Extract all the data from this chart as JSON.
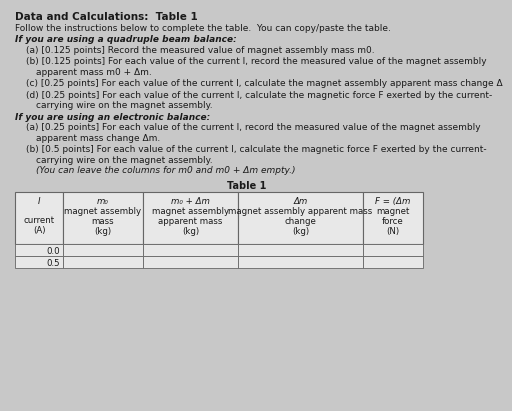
{
  "title": "Data and Calculations:  Table 1",
  "intro_text": "Follow the instructions below to complete the table.  You can copy/paste the table.",
  "sections": [
    {
      "heading": "If you are using a quadruple beam balance:",
      "items": [
        [
          [
            "(a) [0.125 points] Record the measured value of magnet assembly mass m",
            "0",
            "."
          ]
        ],
        [
          [
            "(b) [0.125 points] For each value of the current I, record the measured value of the magnet assembly"
          ],
          [
            "apparent mass m",
            "0",
            " + Δm."
          ]
        ],
        [
          [
            "(c) [0.25 points] For each value of the current I, calculate the magnet assembly apparent mass change Δ"
          ]
        ],
        [
          [
            "(d) [0.25 points] For each value of the current I, calculate the magnetic force F exerted by the current-"
          ],
          [
            "carrying wire on the magnet assembly."
          ]
        ]
      ]
    },
    {
      "heading": "If you are using an electronic balance:",
      "items": [
        [
          [
            "(a) [0.25 points] For each value of the current I, record the measured value of the magnet assembly"
          ],
          [
            "apparent mass change Δm."
          ]
        ],
        [
          [
            "(b) [0.5 points] For each value of the current I, calculate the magnetic force F exerted by the current-"
          ],
          [
            "carrying wire on the magnet assembly."
          ],
          [
            "(You can leave the columns for m",
            "0",
            " and m",
            "0",
            " + Δm empty.)"
          ]
        ]
      ]
    }
  ],
  "table_title": "Table 1",
  "col_headers": [
    [
      "I",
      "",
      "current",
      "(A)"
    ],
    [
      "m₀",
      "magnet assembly",
      "mass",
      "(kg)"
    ],
    [
      "m₀ + Δm",
      "magnet assembly",
      "apparent mass",
      "(kg)"
    ],
    [
      "Δm",
      "magnet assembly apparent mass",
      "change",
      "(kg)"
    ],
    [
      "F = (Δm",
      "magnet",
      "force",
      "(N)"
    ]
  ],
  "data_rows": [
    [
      "0.0",
      "",
      "",
      "",
      ""
    ],
    [
      "0.5",
      "",
      "",
      "",
      ""
    ]
  ],
  "bg_color": "#c8c8c8",
  "table_bg": "#e8e8e8",
  "text_color": "#1a1a1a",
  "header_bg": "#e0e0e0"
}
